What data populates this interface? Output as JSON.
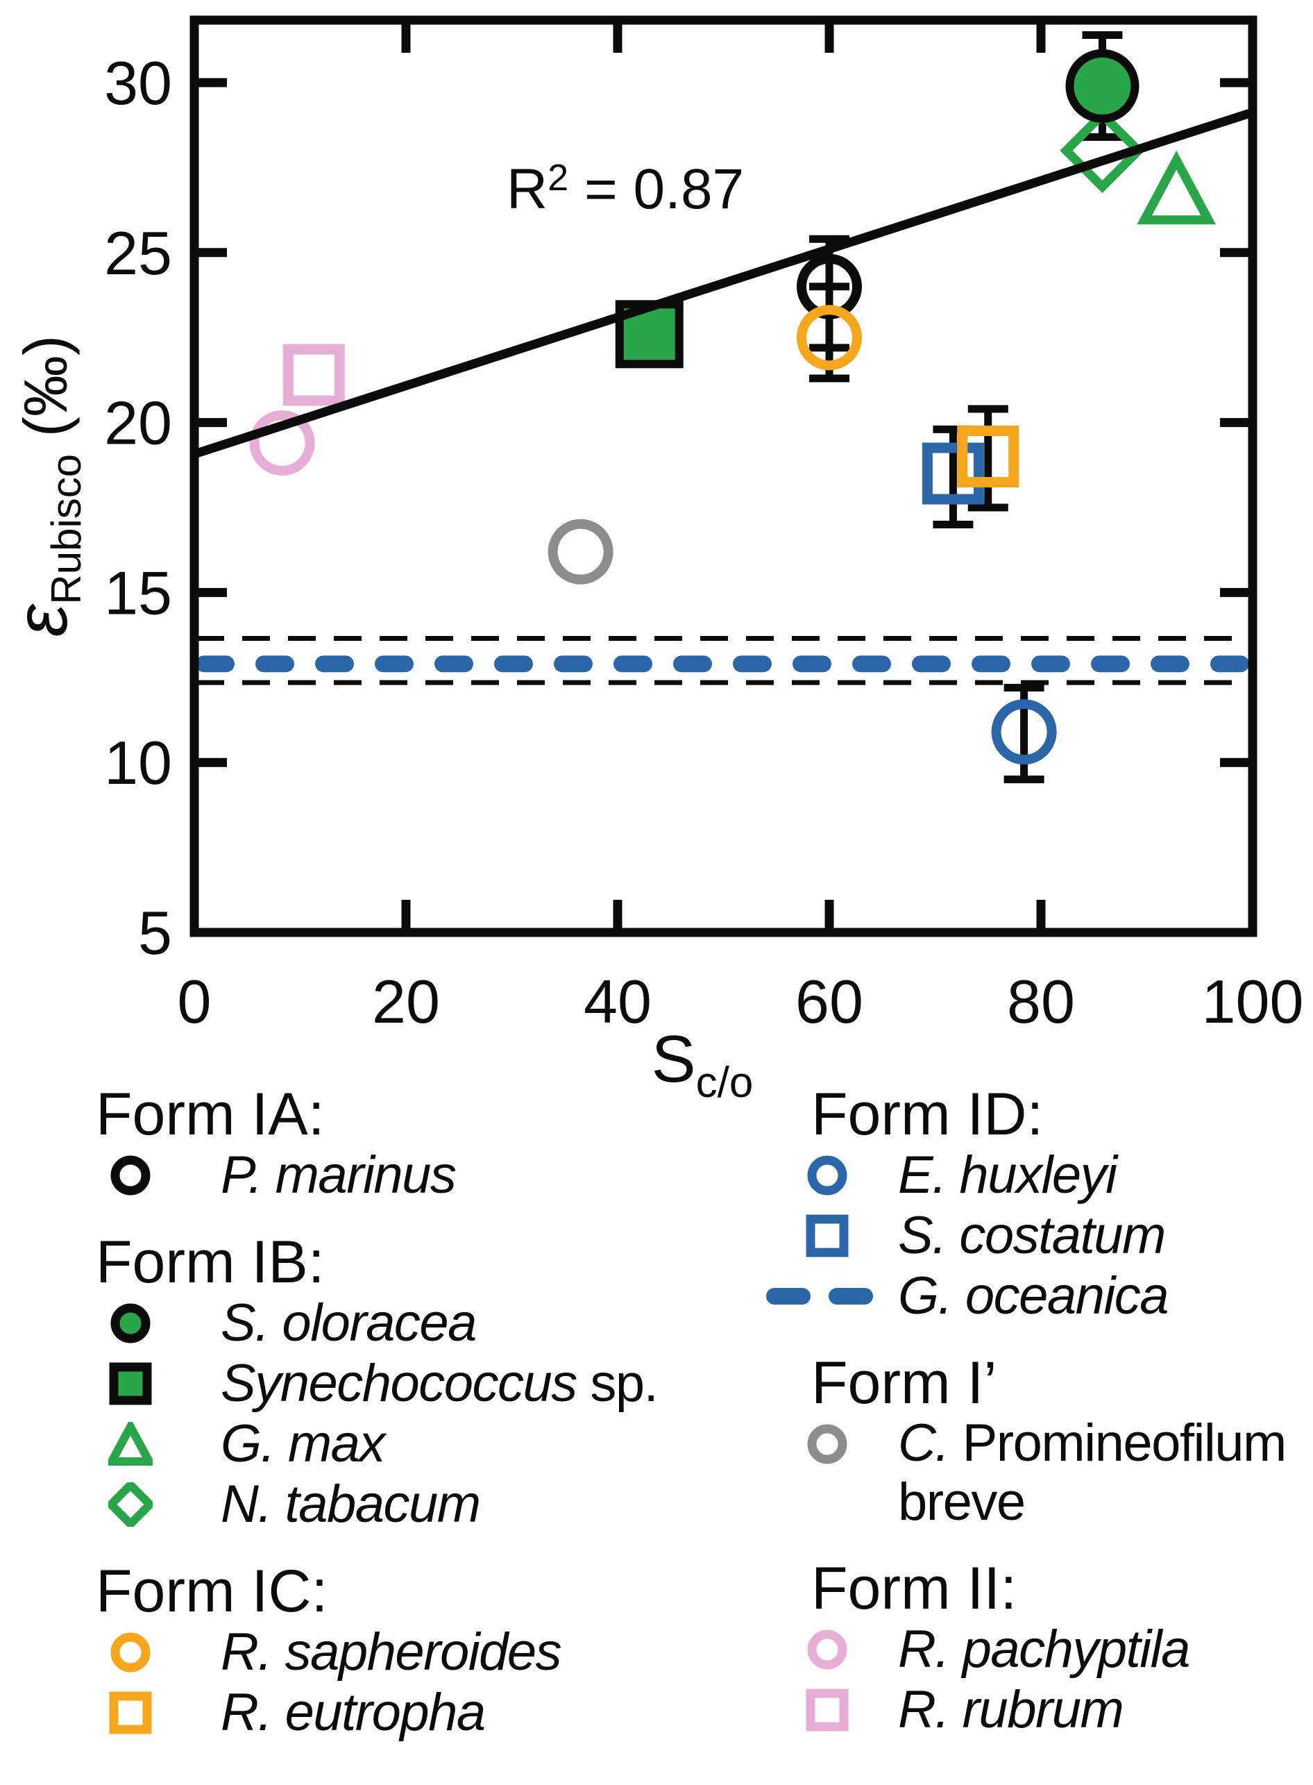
{
  "figure": {
    "background": "#ffffff",
    "text_color": "#0b0b0b"
  },
  "chart_data": {
    "type": "scatter",
    "title": "",
    "annotation": {
      "base": "R",
      "sup": "2",
      "rest": " = 0.87",
      "text": "R² = 0.87",
      "x": 40.7,
      "y": 26.9
    },
    "xlabel_main": "S",
    "xlabel_sub": "c/o",
    "ylabel_epsilon": "ε",
    "ylabel_sub": "Rubisco",
    "ylabel_unit": " (‰)",
    "xlim": [
      0,
      100
    ],
    "ylim": [
      5,
      31.8
    ],
    "x_ticks": [
      0,
      20,
      40,
      60,
      80,
      100
    ],
    "y_ticks": [
      5,
      10,
      15,
      20,
      25,
      30
    ],
    "grid": false,
    "legend_position": "below",
    "regression_line": {
      "x1": 0,
      "y1": 19.1,
      "x2": 100,
      "y2": 29.1,
      "r_squared": 0.87,
      "color": "#0b0b0b"
    },
    "reference_band": {
      "species": "G. oceanica",
      "form": "ID",
      "center": 12.9,
      "upper": 13.65,
      "lower": 12.35,
      "line_color": "#2b67a8",
      "edge_color": "#0b0b0b"
    },
    "points": [
      {
        "species": "R. rubrum",
        "form": "II",
        "x": 11.3,
        "y": 21.4,
        "marker": "square",
        "fill": "none",
        "color": "#e7aed5"
      },
      {
        "species": "R. pachyptila",
        "form": "II",
        "x": 8.3,
        "y": 19.4,
        "marker": "circle",
        "fill": "none",
        "color": "#e7aed5"
      },
      {
        "species": "C. Promineofilum breve",
        "form": "I'",
        "x": 36.5,
        "y": 16.2,
        "marker": "circle",
        "fill": "none",
        "color": "#8d8d8d"
      },
      {
        "species": "Synechococcus sp.",
        "form": "IB",
        "x": 43,
        "y": 22.6,
        "err_lo": 21.9,
        "err_hi": 23.3,
        "marker": "square",
        "fill": "#29a64a",
        "color": "#0b0b0b"
      },
      {
        "species": "P. marinus",
        "form": "IA",
        "x": 60,
        "y": 24.0,
        "err_lo": 22.2,
        "err_hi": 25.4,
        "marker": "circle",
        "fill": "none",
        "color": "#0b0b0b"
      },
      {
        "species": "R. sapheroides",
        "form": "IC",
        "x": 60,
        "y": 22.5,
        "err_lo": 21.3,
        "err_hi": 24.0,
        "marker": "circle",
        "fill": "none",
        "color": "#f6a61d"
      },
      {
        "species": "S. costatum",
        "form": "ID",
        "x": 71.7,
        "y": 18.5,
        "err_lo": 17.0,
        "err_hi": 19.8,
        "marker": "square",
        "fill": "none",
        "color": "#2b67a8"
      },
      {
        "species": "R. eutropha",
        "form": "IC",
        "x": 75,
        "y": 19.0,
        "err_lo": 17.5,
        "err_hi": 20.4,
        "marker": "square",
        "fill": "none",
        "color": "#f6a61d"
      },
      {
        "species": "E. huxleyi",
        "form": "ID",
        "x": 78.4,
        "y": 10.9,
        "err_lo": 9.5,
        "err_hi": 12.2,
        "marker": "circle",
        "fill": "none",
        "color": "#2b67a8"
      },
      {
        "species": "N. tabacum",
        "form": "IB",
        "x": 85.8,
        "y": 28.0,
        "marker": "diamond",
        "fill": "none",
        "color": "#29a64a"
      },
      {
        "species": "S. oloracea",
        "form": "IB",
        "x": 85.8,
        "y": 29.9,
        "err_lo": 28.4,
        "err_hi": 31.4,
        "marker": "circle",
        "fill": "#29a64a",
        "color": "#0b0b0b"
      },
      {
        "species": "G. max",
        "form": "IB",
        "x": 92.8,
        "y": 26.7,
        "marker": "triangle",
        "fill": "none",
        "color": "#29a64a"
      }
    ]
  },
  "legend": {
    "columns": [
      {
        "side": "left",
        "groups": [
          {
            "heading": "Form IA:",
            "items": [
              {
                "marker": "circle",
                "color": "#0b0b0b",
                "fill": "none",
                "label_parts": [
                  {
                    "t": "P. marinus",
                    "i": true
                  }
                ]
              }
            ]
          },
          {
            "heading": "Form IB:",
            "items": [
              {
                "marker": "circle",
                "color": "#0b0b0b",
                "fill": "#29a64a",
                "label_parts": [
                  {
                    "t": "S. oloracea",
                    "i": true
                  }
                ]
              },
              {
                "marker": "square",
                "color": "#0b0b0b",
                "fill": "#29a64a",
                "label_parts": [
                  {
                    "t": "Synechococcus",
                    "i": true
                  },
                  {
                    "t": " sp.",
                    "i": false
                  }
                ]
              },
              {
                "marker": "triangle",
                "color": "#29a64a",
                "fill": "none",
                "label_parts": [
                  {
                    "t": "G. max",
                    "i": true
                  }
                ]
              },
              {
                "marker": "diamond",
                "color": "#29a64a",
                "fill": "none",
                "label_parts": [
                  {
                    "t": "N. tabacum",
                    "i": true
                  }
                ]
              }
            ]
          },
          {
            "heading": "Form IC:",
            "items": [
              {
                "marker": "circle",
                "color": "#f6a61d",
                "fill": "none",
                "label_parts": [
                  {
                    "t": "R. sapheroides",
                    "i": true
                  }
                ]
              },
              {
                "marker": "square",
                "color": "#f6a61d",
                "fill": "none",
                "label_parts": [
                  {
                    "t": "R. eutropha",
                    "i": true
                  }
                ]
              }
            ]
          }
        ]
      },
      {
        "side": "right",
        "groups": [
          {
            "heading": "Form ID:",
            "items": [
              {
                "marker": "circle",
                "color": "#2b67a8",
                "fill": "none",
                "label_parts": [
                  {
                    "t": "E. huxleyi",
                    "i": true
                  }
                ]
              },
              {
                "marker": "square",
                "color": "#2b67a8",
                "fill": "none",
                "label_parts": [
                  {
                    "t": "S. costatum",
                    "i": true
                  }
                ]
              },
              {
                "marker": "dash",
                "color": "#2b67a8",
                "fill": "#2b67a8",
                "label_parts": [
                  {
                    "t": "G. oceanica",
                    "i": true
                  }
                ]
              }
            ]
          },
          {
            "heading": "Form I’",
            "items": [
              {
                "marker": "circle",
                "color": "#8d8d8d",
                "fill": "none",
                "lines": 2,
                "label_parts": [
                  {
                    "t": "C.",
                    "i": true
                  },
                  {
                    "t": " Promineofilum",
                    "i": false
                  },
                  {
                    "br": true
                  },
                  {
                    "t": "breve",
                    "i": false
                  }
                ]
              }
            ]
          },
          {
            "heading": "Form II:",
            "items": [
              {
                "marker": "circle",
                "color": "#e7aed5",
                "fill": "none",
                "label_parts": [
                  {
                    "t": "R. pachyptila",
                    "i": true
                  }
                ]
              },
              {
                "marker": "square",
                "color": "#e7aed5",
                "fill": "none",
                "label_parts": [
                  {
                    "t": "R. rubrum",
                    "i": true
                  }
                ]
              }
            ]
          }
        ]
      }
    ]
  }
}
